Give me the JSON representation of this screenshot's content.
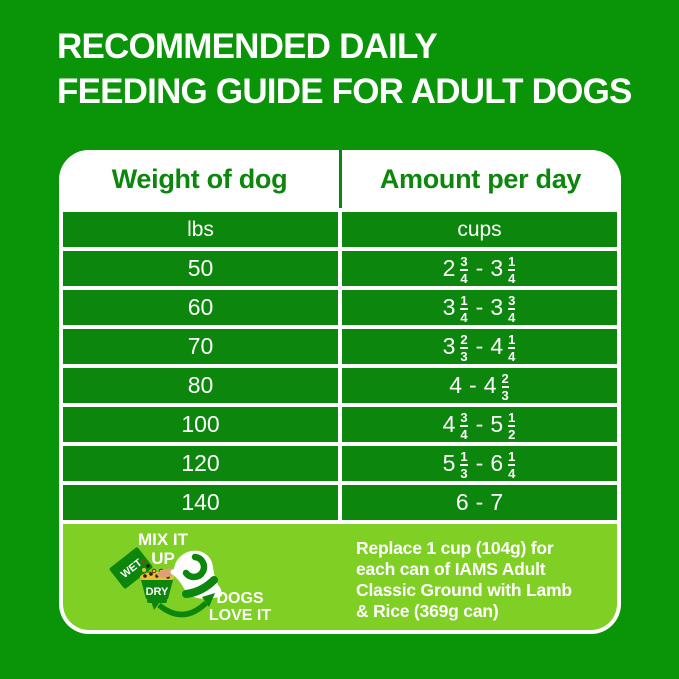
{
  "palette": {
    "background_green": "#0A9408",
    "row_green": "#0C860C",
    "lime_green": "#7FCF25",
    "white": "#FFFFFF",
    "tongue": "#E0A077",
    "kibble_yellow": "#EDBD33",
    "kibble_dark": "#2A2208"
  },
  "title": {
    "line1": "RECOMMENDED DAILY",
    "line2": "FEEDING GUIDE FOR ADULT DOGS"
  },
  "table": {
    "headers": {
      "weight": "Weight of dog",
      "amount": "Amount per day"
    },
    "units": {
      "weight": "lbs",
      "amount": "cups"
    },
    "dash": "-",
    "rows": [
      {
        "weight": "50",
        "low": {
          "whole": "2",
          "num": "3",
          "den": "4"
        },
        "high": {
          "whole": "3",
          "num": "1",
          "den": "4"
        }
      },
      {
        "weight": "60",
        "low": {
          "whole": "3",
          "num": "1",
          "den": "4"
        },
        "high": {
          "whole": "3",
          "num": "3",
          "den": "4"
        }
      },
      {
        "weight": "70",
        "low": {
          "whole": "3",
          "num": "2",
          "den": "3"
        },
        "high": {
          "whole": "4",
          "num": "1",
          "den": "4"
        }
      },
      {
        "weight": "80",
        "low": {
          "whole": "4"
        },
        "high": {
          "whole": "4",
          "num": "2",
          "den": "3"
        }
      },
      {
        "weight": "100",
        "low": {
          "whole": "4",
          "num": "3",
          "den": "4"
        },
        "high": {
          "whole": "5",
          "num": "1",
          "den": "2"
        }
      },
      {
        "weight": "120",
        "low": {
          "whole": "5",
          "num": "1",
          "den": "3"
        },
        "high": {
          "whole": "6",
          "num": "1",
          "den": "4"
        }
      },
      {
        "weight": "140",
        "low": {
          "whole": "6"
        },
        "high": {
          "whole": "7"
        }
      }
    ]
  },
  "footer": {
    "mix_line1": "MIX IT",
    "mix_line2": "UP",
    "wet_label": "WET",
    "dry_label": "DRY",
    "dogs_line1": "DOGS",
    "dogs_line2": "LOVE IT",
    "note_lines": [
      "Replace 1 cup (104g) for",
      "each can of IAMS Adult",
      "Classic Ground with Lamb",
      "& Rice (369g can)"
    ]
  },
  "chart_data": {
    "type": "table",
    "title": "RECOMMENDED DAILY FEEDING GUIDE FOR ADULT DOGS",
    "columns": [
      "Weight of dog (lbs)",
      "Amount per day (cups)"
    ],
    "rows": [
      [
        "50",
        "2 3/4 - 3 1/4"
      ],
      [
        "60",
        "3 1/4 - 3 3/4"
      ],
      [
        "70",
        "3 2/3 - 4 1/4"
      ],
      [
        "80",
        "4 - 4 2/3"
      ],
      [
        "100",
        "4 3/4 - 5 1/2"
      ],
      [
        "120",
        "5 1/3 - 6 1/4"
      ],
      [
        "140",
        "6 - 7"
      ]
    ],
    "note": "Replace 1 cup (104g) for each can of IAMS Adult Classic Ground with Lamb & Rice (369g can)"
  }
}
